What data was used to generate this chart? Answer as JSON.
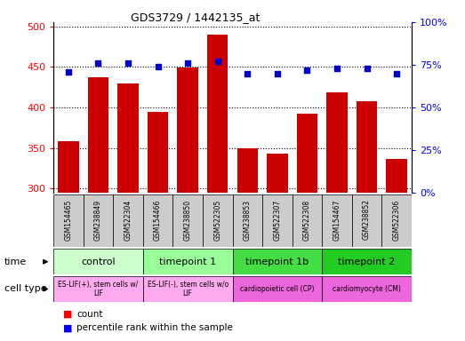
{
  "title": "GDS3729 / 1442135_at",
  "samples": [
    "GSM154465",
    "GSM238849",
    "GSM522304",
    "GSM154466",
    "GSM238850",
    "GSM522305",
    "GSM238853",
    "GSM522307",
    "GSM522308",
    "GSM154467",
    "GSM238852",
    "GSM522306"
  ],
  "counts": [
    358,
    437,
    430,
    395,
    449,
    490,
    350,
    343,
    392,
    419,
    408,
    337
  ],
  "percentiles": [
    71,
    76,
    76,
    74,
    76,
    77,
    70,
    70,
    72,
    73,
    73,
    70
  ],
  "ylim_left": [
    295,
    505
  ],
  "ylim_right": [
    0,
    100
  ],
  "yticks_left": [
    300,
    350,
    400,
    450,
    500
  ],
  "yticks_right": [
    0,
    25,
    50,
    75,
    100
  ],
  "bar_color": "#cc0000",
  "dot_color": "#0000cc",
  "sample_box_color": "#cccccc",
  "time_groups": [
    {
      "label": "control",
      "start": 0,
      "end": 3,
      "color": "#ccffcc"
    },
    {
      "label": "timepoint 1",
      "start": 3,
      "end": 6,
      "color": "#99ff99"
    },
    {
      "label": "timepoint 1b",
      "start": 6,
      "end": 9,
      "color": "#44dd44"
    },
    {
      "label": "timepoint 2",
      "start": 9,
      "end": 12,
      "color": "#22cc22"
    }
  ],
  "cell_groups": [
    {
      "label": "ES-LIF(+), stem cells w/\nLIF",
      "start": 0,
      "end": 3,
      "color": "#ffaaee"
    },
    {
      "label": "ES-LIF(-), stem cells w/o\nLIF",
      "start": 3,
      "end": 6,
      "color": "#ffaaee"
    },
    {
      "label": "cardiopoietic cell (CP)",
      "start": 6,
      "end": 9,
      "color": "#ee66dd"
    },
    {
      "label": "cardiomyocyte (CM)",
      "start": 9,
      "end": 12,
      "color": "#ee66dd"
    }
  ]
}
